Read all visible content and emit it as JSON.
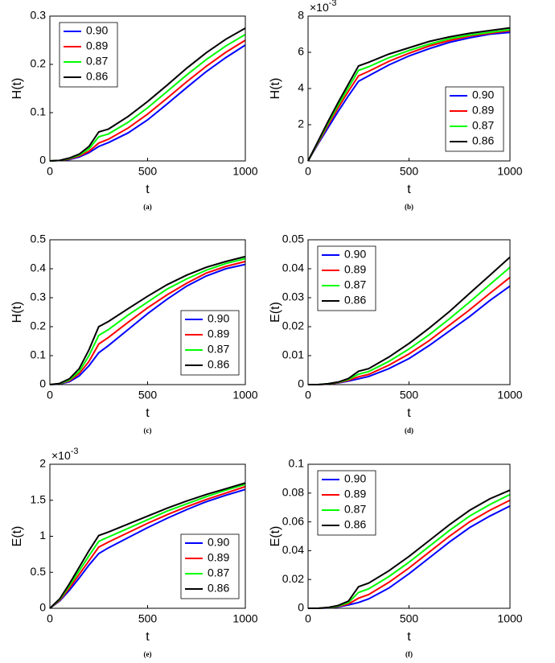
{
  "chart_data": [
    {
      "type": "line",
      "caption": "(a)",
      "xlabel": "t",
      "ylabel": "H(t)",
      "xlim": [
        0,
        1000
      ],
      "xticks": [
        0,
        500,
        1000
      ],
      "ylim": [
        0,
        0.3
      ],
      "yticks": [
        0,
        0.1,
        0.2,
        0.3
      ],
      "legend": "top-left",
      "x": [
        0,
        50,
        100,
        150,
        200,
        250,
        300,
        400,
        500,
        600,
        700,
        800,
        900,
        1000
      ],
      "series": [
        {
          "name": "0.90",
          "color": "#0000ff",
          "values": [
            0,
            0.001,
            0.003,
            0.008,
            0.017,
            0.03,
            0.038,
            0.058,
            0.085,
            0.118,
            0.152,
            0.185,
            0.214,
            0.24
          ]
        },
        {
          "name": "0.89",
          "color": "#ff0000",
          "values": [
            0,
            0.001,
            0.004,
            0.01,
            0.02,
            0.037,
            0.045,
            0.068,
            0.097,
            0.13,
            0.164,
            0.196,
            0.225,
            0.25
          ]
        },
        {
          "name": "0.87",
          "color": "#00ff00",
          "values": [
            0,
            0.001,
            0.005,
            0.012,
            0.025,
            0.05,
            0.056,
            0.08,
            0.11,
            0.144,
            0.178,
            0.21,
            0.238,
            0.262
          ]
        },
        {
          "name": "0.86",
          "color": "#000000",
          "values": [
            0,
            0.001,
            0.006,
            0.014,
            0.03,
            0.06,
            0.066,
            0.092,
            0.123,
            0.157,
            0.192,
            0.224,
            0.252,
            0.275
          ]
        }
      ]
    },
    {
      "type": "line",
      "caption": "(b)",
      "xlabel": "t",
      "ylabel": "H(t)",
      "y_scale_label": "×10",
      "y_scale_exponent": "-3",
      "xlim": [
        0,
        1000
      ],
      "xticks": [
        0,
        500,
        1000
      ],
      "ylim": [
        0,
        8
      ],
      "yticks": [
        0,
        2,
        4,
        6,
        8
      ],
      "legend": "bottom-right",
      "x": [
        0,
        50,
        100,
        150,
        200,
        250,
        300,
        400,
        500,
        600,
        700,
        800,
        900,
        1000
      ],
      "series": [
        {
          "name": "0.90",
          "color": "#0000ff",
          "values": [
            0,
            0.95,
            1.85,
            2.75,
            3.6,
            4.4,
            4.7,
            5.3,
            5.8,
            6.2,
            6.55,
            6.8,
            7.0,
            7.1
          ]
        },
        {
          "name": "0.89",
          "color": "#ff0000",
          "values": [
            0,
            1.0,
            2.0,
            2.95,
            3.85,
            4.7,
            4.95,
            5.5,
            5.95,
            6.35,
            6.65,
            6.9,
            7.05,
            7.2
          ]
        },
        {
          "name": "0.87",
          "color": "#00ff00",
          "values": [
            0,
            1.05,
            2.1,
            3.1,
            4.05,
            5.0,
            5.2,
            5.7,
            6.1,
            6.45,
            6.75,
            6.95,
            7.1,
            7.25
          ]
        },
        {
          "name": "0.86",
          "color": "#000000",
          "values": [
            0,
            1.1,
            2.2,
            3.25,
            4.25,
            5.25,
            5.45,
            5.9,
            6.25,
            6.6,
            6.85,
            7.05,
            7.2,
            7.35
          ]
        }
      ]
    },
    {
      "type": "line",
      "caption": "(c)",
      "xlabel": "t",
      "ylabel": "H(t)",
      "xlim": [
        0,
        1000
      ],
      "xticks": [
        0,
        500,
        1000
      ],
      "ylim": [
        0,
        0.5
      ],
      "yticks": [
        0,
        0.1,
        0.2,
        0.3,
        0.4,
        0.5
      ],
      "legend": "bottom-right",
      "x": [
        0,
        50,
        100,
        150,
        200,
        250,
        300,
        400,
        500,
        600,
        700,
        800,
        900,
        1000
      ],
      "series": [
        {
          "name": "0.90",
          "color": "#0000ff",
          "values": [
            0,
            0.002,
            0.01,
            0.03,
            0.065,
            0.11,
            0.135,
            0.19,
            0.245,
            0.295,
            0.34,
            0.375,
            0.4,
            0.415
          ]
        },
        {
          "name": "0.89",
          "color": "#ff0000",
          "values": [
            0,
            0.003,
            0.013,
            0.038,
            0.08,
            0.14,
            0.163,
            0.215,
            0.265,
            0.31,
            0.35,
            0.385,
            0.408,
            0.425
          ]
        },
        {
          "name": "0.87",
          "color": "#00ff00",
          "values": [
            0,
            0.003,
            0.016,
            0.045,
            0.1,
            0.17,
            0.19,
            0.24,
            0.285,
            0.33,
            0.365,
            0.395,
            0.418,
            0.435
          ]
        },
        {
          "name": "0.86",
          "color": "#000000",
          "values": [
            0,
            0.004,
            0.02,
            0.055,
            0.12,
            0.2,
            0.218,
            0.262,
            0.305,
            0.345,
            0.378,
            0.405,
            0.425,
            0.442
          ]
        }
      ]
    },
    {
      "type": "line",
      "caption": "(d)",
      "xlabel": "t",
      "ylabel": "E(t)",
      "xlim": [
        0,
        1000
      ],
      "xticks": [
        0,
        500,
        1000
      ],
      "ylim": [
        0,
        0.05
      ],
      "yticks": [
        0,
        0.01,
        0.02,
        0.03,
        0.04,
        0.05
      ],
      "legend": "top-left",
      "x": [
        0,
        50,
        100,
        150,
        200,
        250,
        300,
        400,
        500,
        600,
        700,
        800,
        900,
        1000
      ],
      "series": [
        {
          "name": "0.90",
          "color": "#0000ff",
          "values": [
            0,
            0,
            0.0002,
            0.0006,
            0.0012,
            0.002,
            0.0028,
            0.0055,
            0.009,
            0.0135,
            0.0185,
            0.0235,
            0.029,
            0.034
          ]
        },
        {
          "name": "0.89",
          "color": "#ff0000",
          "values": [
            0,
            0,
            0.0002,
            0.0007,
            0.0015,
            0.0027,
            0.0035,
            0.0067,
            0.0106,
            0.0152,
            0.0205,
            0.0258,
            0.0315,
            0.037
          ]
        },
        {
          "name": "0.87",
          "color": "#00ff00",
          "values": [
            0,
            0,
            0.0003,
            0.0008,
            0.0018,
            0.0036,
            0.0045,
            0.008,
            0.0123,
            0.0172,
            0.0227,
            0.0285,
            0.0345,
            0.0405
          ]
        },
        {
          "name": "0.86",
          "color": "#000000",
          "values": [
            0,
            0,
            0.0003,
            0.0009,
            0.0021,
            0.0046,
            0.0055,
            0.0095,
            0.0142,
            0.0195,
            0.0252,
            0.0315,
            0.0377,
            0.044
          ]
        }
      ]
    },
    {
      "type": "line",
      "caption": "(e)",
      "xlabel": "t",
      "ylabel": "E(t)",
      "y_scale_label": "×10",
      "y_scale_exponent": "-3",
      "xlim": [
        0,
        1000
      ],
      "xticks": [
        0,
        500,
        1000
      ],
      "ylim": [
        0,
        2
      ],
      "yticks": [
        0,
        0.5,
        1,
        1.5,
        2
      ],
      "legend": "bottom-right",
      "x": [
        0,
        50,
        100,
        150,
        200,
        250,
        300,
        400,
        500,
        600,
        700,
        800,
        900,
        1000
      ],
      "series": [
        {
          "name": "0.90",
          "color": "#0000ff",
          "values": [
            0,
            0.1,
            0.25,
            0.42,
            0.6,
            0.76,
            0.84,
            0.98,
            1.12,
            1.25,
            1.37,
            1.48,
            1.57,
            1.65
          ]
        },
        {
          "name": "0.89",
          "color": "#ff0000",
          "values": [
            0,
            0.11,
            0.28,
            0.47,
            0.66,
            0.85,
            0.92,
            1.05,
            1.18,
            1.3,
            1.41,
            1.51,
            1.6,
            1.69
          ]
        },
        {
          "name": "0.87",
          "color": "#00ff00",
          "values": [
            0,
            0.12,
            0.31,
            0.52,
            0.73,
            0.93,
            0.99,
            1.11,
            1.23,
            1.35,
            1.45,
            1.55,
            1.64,
            1.72
          ]
        },
        {
          "name": "0.86",
          "color": "#000000",
          "values": [
            0,
            0.13,
            0.34,
            0.57,
            0.8,
            1.01,
            1.06,
            1.17,
            1.28,
            1.39,
            1.49,
            1.58,
            1.66,
            1.74
          ]
        }
      ]
    },
    {
      "type": "line",
      "caption": "(f)",
      "xlabel": "t",
      "ylabel": "E(t)",
      "xlim": [
        0,
        1000
      ],
      "xticks": [
        0,
        500,
        1000
      ],
      "ylim": [
        0,
        0.1
      ],
      "yticks": [
        0,
        0.02,
        0.04,
        0.06,
        0.08,
        0.1
      ],
      "legend": "top-left",
      "x": [
        0,
        50,
        100,
        150,
        200,
        250,
        300,
        400,
        500,
        600,
        700,
        800,
        900,
        1000
      ],
      "series": [
        {
          "name": "0.90",
          "color": "#0000ff",
          "values": [
            0,
            0,
            0.0003,
            0.001,
            0.0023,
            0.004,
            0.0065,
            0.014,
            0.024,
            0.035,
            0.046,
            0.056,
            0.064,
            0.071
          ]
        },
        {
          "name": "0.89",
          "color": "#ff0000",
          "values": [
            0,
            0,
            0.0004,
            0.0013,
            0.003,
            0.007,
            0.0095,
            0.018,
            0.028,
            0.039,
            0.05,
            0.06,
            0.068,
            0.075
          ]
        },
        {
          "name": "0.87",
          "color": "#00ff00",
          "values": [
            0,
            0,
            0.0005,
            0.0016,
            0.004,
            0.011,
            0.0135,
            0.022,
            0.032,
            0.043,
            0.054,
            0.064,
            0.072,
            0.079
          ]
        },
        {
          "name": "0.86",
          "color": "#000000",
          "values": [
            0,
            0,
            0.0006,
            0.002,
            0.005,
            0.015,
            0.0175,
            0.026,
            0.036,
            0.047,
            0.058,
            0.068,
            0.076,
            0.082
          ]
        }
      ]
    }
  ]
}
